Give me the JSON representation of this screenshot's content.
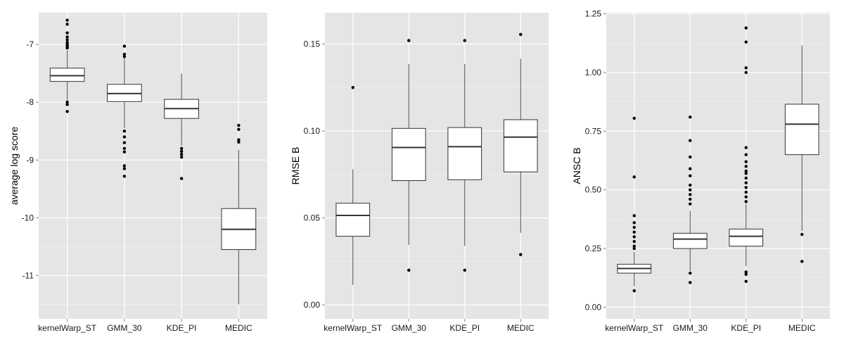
{
  "colors": {
    "panel_bg": "#e5e5e5",
    "grid_major": "#ffffff",
    "grid_minor": "#f2f2f2",
    "box_fill": "#ffffff",
    "box_stroke": "#333333",
    "whisker": "#4d4d4d",
    "outlier": "#000000"
  },
  "chart_data": [
    {
      "type": "box",
      "title": "",
      "xlabel": "",
      "ylabel": "average log score",
      "categories": [
        "kernelWarp_ST",
        "GMM_30",
        "KDE_PI",
        "MEDIC"
      ],
      "ylim": [
        -11.75,
        -6.45
      ],
      "yticks": [
        -7,
        -8,
        -9,
        -10,
        -11
      ],
      "ytick_labels": [
        "-7",
        "-8",
        "-9",
        "-10",
        "-11"
      ],
      "boxes": [
        {
          "q1": -7.64,
          "median": -7.54,
          "q3": -7.41,
          "whisker_low": -7.98,
          "whisker_high": -7.1,
          "outliers": [
            -6.58,
            -6.65,
            -6.8,
            -6.87,
            -6.92,
            -6.97,
            -7.0,
            -7.03,
            -7.06,
            -8.0,
            -8.04,
            -8.16
          ]
        },
        {
          "q1": -7.99,
          "median": -7.85,
          "q3": -7.69,
          "whisker_low": -8.45,
          "whisker_high": -7.24,
          "outliers": [
            -7.03,
            -7.17,
            -7.21,
            -8.5,
            -8.6,
            -8.7,
            -8.8,
            -8.86,
            -9.1,
            -9.15,
            -9.28
          ]
        },
        {
          "q1": -8.28,
          "median": -8.11,
          "q3": -7.95,
          "whisker_low": -8.75,
          "whisker_high": -7.5,
          "outliers": [
            -8.8,
            -8.85,
            -8.9,
            -8.95,
            -9.32
          ]
        },
        {
          "q1": -10.55,
          "median": -10.2,
          "q3": -9.84,
          "whisker_low": -11.5,
          "whisker_high": -8.82,
          "outliers": [
            -8.4,
            -8.47,
            -8.65,
            -8.69
          ]
        }
      ]
    },
    {
      "type": "box",
      "title": "",
      "xlabel": "",
      "ylabel": "RMSE B",
      "categories": [
        "kernelWarp_ST",
        "GMM_30",
        "KDE_PI",
        "MEDIC"
      ],
      "ylim": [
        -0.008,
        0.168
      ],
      "yticks": [
        0,
        0.05,
        0.1,
        0.15
      ],
      "ytick_labels": [
        "0.00",
        "0.05",
        "0.10",
        "0.15"
      ],
      "boxes": [
        {
          "q1": 0.0395,
          "median": 0.0515,
          "q3": 0.0585,
          "whisker_low": 0.0115,
          "whisker_high": 0.078,
          "outliers": [
            0.125
          ]
        },
        {
          "q1": 0.0715,
          "median": 0.0905,
          "q3": 0.1015,
          "whisker_low": 0.0345,
          "whisker_high": 0.1385,
          "outliers": [
            0.152,
            0.02
          ]
        },
        {
          "q1": 0.072,
          "median": 0.091,
          "q3": 0.102,
          "whisker_low": 0.034,
          "whisker_high": 0.1385,
          "outliers": [
            0.152,
            0.02
          ]
        },
        {
          "q1": 0.0765,
          "median": 0.0965,
          "q3": 0.1065,
          "whisker_low": 0.0415,
          "whisker_high": 0.1415,
          "outliers": [
            0.1555,
            0.029
          ]
        }
      ]
    },
    {
      "type": "box",
      "title": "",
      "xlabel": "",
      "ylabel": "ANSC B",
      "categories": [
        "kernelWarp_ST",
        "GMM_30",
        "KDE_PI",
        "MEDIC"
      ],
      "ylim": [
        -0.05,
        1.255
      ],
      "yticks": [
        0,
        0.25,
        0.5,
        0.75,
        1,
        1.25
      ],
      "ytick_labels": [
        "0.00",
        "0.25",
        "0.50",
        "0.75",
        "1.00",
        "1.25"
      ],
      "boxes": [
        {
          "q1": 0.145,
          "median": 0.165,
          "q3": 0.183,
          "whisker_low": 0.09,
          "whisker_high": 0.235,
          "outliers": [
            0.07,
            0.25,
            0.26,
            0.28,
            0.3,
            0.32,
            0.34,
            0.36,
            0.39,
            0.555,
            0.805
          ]
        },
        {
          "q1": 0.25,
          "median": 0.29,
          "q3": 0.315,
          "whisker_low": 0.155,
          "whisker_high": 0.41,
          "outliers": [
            0.105,
            0.145,
            0.44,
            0.46,
            0.48,
            0.5,
            0.52,
            0.56,
            0.59,
            0.64,
            0.71,
            0.81
          ]
        },
        {
          "q1": 0.26,
          "median": 0.302,
          "q3": 0.333,
          "whisker_low": 0.175,
          "whisker_high": 0.44,
          "outliers": [
            0.11,
            0.14,
            0.15,
            0.45,
            0.47,
            0.49,
            0.51,
            0.53,
            0.55,
            0.57,
            0.58,
            0.6,
            0.62,
            0.65,
            0.68,
            1.0,
            1.02,
            1.13,
            1.19
          ]
        },
        {
          "q1": 0.65,
          "median": 0.78,
          "q3": 0.865,
          "whisker_low": 0.325,
          "whisker_high": 1.115,
          "outliers": [
            0.31,
            0.195
          ]
        }
      ]
    }
  ]
}
